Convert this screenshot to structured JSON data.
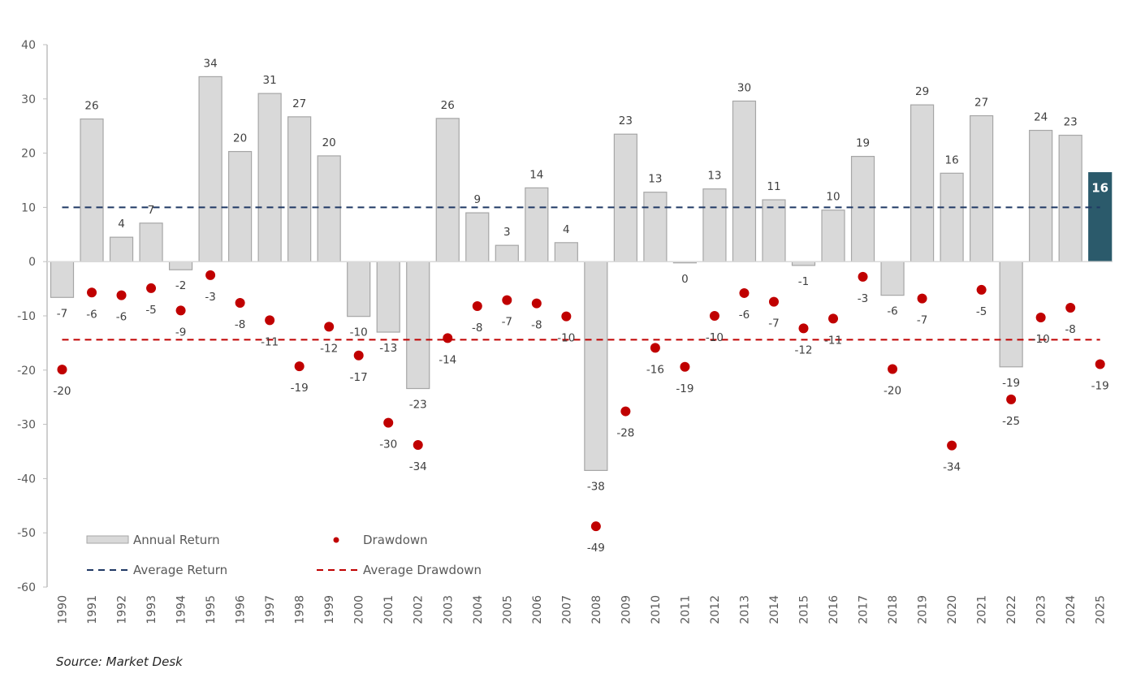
{
  "chart_data": {
    "type": "bar",
    "title": "",
    "xlabel": "",
    "ylabel": "",
    "ylim": [
      -60,
      40
    ],
    "yticks": [
      40,
      30,
      20,
      10,
      0,
      -10,
      -20,
      -30,
      -40,
      -50,
      -60
    ],
    "grid": false,
    "categories": [
      "1990",
      "1991",
      "1992",
      "1993",
      "1994",
      "1995",
      "1996",
      "1997",
      "1998",
      "1999",
      "2000",
      "2001",
      "2002",
      "2003",
      "2004",
      "2005",
      "2006",
      "2007",
      "2008",
      "2009",
      "2010",
      "2011",
      "2012",
      "2013",
      "2014",
      "2015",
      "2016",
      "2017",
      "2018",
      "2019",
      "2020",
      "2021",
      "2022",
      "2023",
      "2024",
      "2025"
    ],
    "series": [
      {
        "name": "Annual Return",
        "type": "bar",
        "color": "#d9d9d9",
        "highlight_color": "#2b5a6b",
        "highlight_index": 35,
        "values": [
          -6.6,
          26.3,
          4.5,
          7.1,
          -1.5,
          34.1,
          20.3,
          31.0,
          26.7,
          19.5,
          -10.1,
          -13.0,
          -23.4,
          26.4,
          9.0,
          3.0,
          13.6,
          3.5,
          -38.5,
          23.5,
          12.8,
          0.0,
          13.4,
          29.6,
          11.4,
          -0.7,
          9.5,
          19.4,
          -6.2,
          28.9,
          16.3,
          26.9,
          -19.4,
          24.2,
          23.3,
          16.4
        ],
        "labels": [
          "-7",
          "26",
          "4",
          "7",
          "-2",
          "34",
          "20",
          "31",
          "27",
          "20",
          "-10",
          "-13",
          "-23",
          "26",
          "9",
          "3",
          "14",
          "4",
          "-38",
          "23",
          "13",
          "0",
          "13",
          "30",
          "11",
          "-1",
          "10",
          "19",
          "-6",
          "29",
          "16",
          "27",
          "-19",
          "24",
          "23",
          "16"
        ]
      },
      {
        "name": "Drawdown",
        "type": "scatter",
        "color": "#c00000",
        "values": [
          -19.9,
          -5.7,
          -6.2,
          -4.9,
          -9.0,
          -2.5,
          -7.6,
          -10.8,
          -19.3,
          -12.0,
          -17.3,
          -29.7,
          -33.8,
          -14.1,
          -8.2,
          -7.1,
          -7.7,
          -10.1,
          -48.8,
          -27.6,
          -15.9,
          -19.4,
          -10.0,
          -5.8,
          -7.4,
          -12.3,
          -10.5,
          -2.8,
          -19.8,
          -6.8,
          -33.9,
          -5.2,
          -25.4,
          -10.3,
          -8.5,
          -18.9
        ],
        "labels": [
          "-20",
          "-6",
          "-6",
          "-5",
          "-9",
          "-3",
          "-8",
          "-11",
          "-19",
          "-12",
          "-17",
          "-30",
          "-34",
          "-14",
          "-8",
          "-7",
          "-8",
          "-10",
          "-49",
          "-28",
          "-16",
          "-19",
          "-10",
          "-6",
          "-7",
          "-12",
          "-11",
          "-3",
          "-20",
          "-7",
          "-34",
          "-5",
          "-25",
          "-10",
          "-8",
          "-19"
        ]
      },
      {
        "name": "Average Return",
        "type": "hline",
        "color": "#1f3864",
        "value": 10.0
      },
      {
        "name": "Average Drawdown",
        "type": "hline",
        "color": "#c00000",
        "value": -14.4
      }
    ],
    "legend": {
      "placement": "bottom-left",
      "entries": [
        "Annual Return",
        "Drawdown",
        "Average Return",
        "Average Drawdown"
      ]
    }
  },
  "source": "Source:  Market Desk"
}
